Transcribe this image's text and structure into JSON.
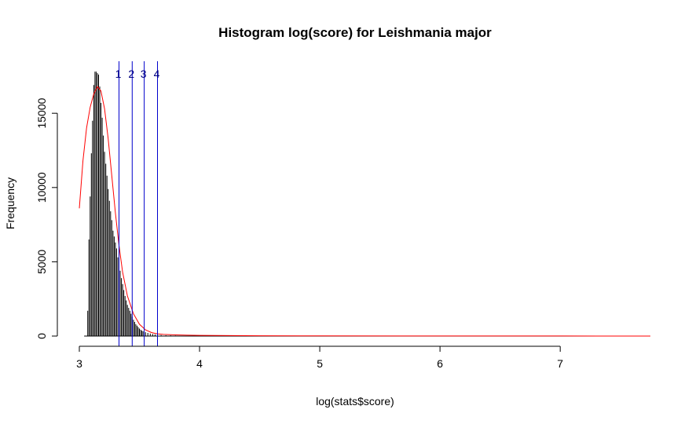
{
  "chart_data": {
    "type": "bar",
    "title": "Histogram log(score) for Leishmania major",
    "xlabel": "log(stats$score)",
    "ylabel": "Frequency",
    "xlim": [
      3.0,
      7.75
    ],
    "ylim": [
      0,
      18500
    ],
    "x_ticks": [
      "3",
      "4",
      "5",
      "6",
      "7"
    ],
    "y_ticks": [
      "0",
      "5000",
      "10000",
      "15000"
    ],
    "bars": {
      "x": [
        3.07,
        3.08,
        3.09,
        3.1,
        3.11,
        3.12,
        3.13,
        3.14,
        3.15,
        3.16,
        3.17,
        3.18,
        3.19,
        3.2,
        3.21,
        3.22,
        3.23,
        3.24,
        3.25,
        3.26,
        3.27,
        3.28,
        3.29,
        3.3,
        3.31,
        3.32,
        3.33,
        3.34,
        3.35,
        3.36,
        3.37,
        3.38,
        3.39,
        3.4,
        3.41,
        3.42,
        3.43,
        3.44,
        3.45,
        3.46,
        3.47,
        3.48,
        3.49,
        3.5,
        3.51,
        3.52,
        3.53,
        3.55,
        3.57,
        3.59,
        3.61,
        3.63,
        3.65,
        3.68,
        3.72,
        3.76,
        3.8,
        3.85,
        3.9,
        3.95,
        4.0,
        4.08,
        4.15,
        4.25,
        4.4,
        4.65,
        4.9,
        5.1,
        5.2,
        6.65
      ],
      "values": [
        1700,
        6500,
        9400,
        12300,
        14500,
        16900,
        17800,
        17800,
        17700,
        17600,
        16800,
        15700,
        14700,
        13500,
        12400,
        11600,
        10800,
        9900,
        9100,
        8400,
        7800,
        7100,
        6700,
        6300,
        5900,
        5300,
        4800,
        4400,
        3900,
        3500,
        3100,
        2700,
        2400,
        2100,
        1900,
        1700,
        1500,
        1300,
        1100,
        950,
        800,
        700,
        600,
        500,
        430,
        370,
        320,
        260,
        210,
        170,
        140,
        110,
        90,
        70,
        55,
        45,
        35,
        28,
        22,
        18,
        14,
        10,
        8,
        6,
        5,
        4,
        4,
        3,
        3,
        2
      ]
    },
    "density_curve": {
      "color": "#ff0000",
      "x": [
        3.0,
        3.03,
        3.06,
        3.09,
        3.12,
        3.15,
        3.18,
        3.21,
        3.24,
        3.27,
        3.3,
        3.33,
        3.36,
        3.4,
        3.45,
        3.5,
        3.55,
        3.6,
        3.65,
        3.7,
        3.8,
        3.9,
        4.0,
        4.5,
        5.0,
        6.0,
        7.0,
        7.75
      ],
      "y": [
        8600,
        11800,
        14000,
        15400,
        16300,
        16800,
        16500,
        15300,
        13300,
        10800,
        8300,
        6100,
        4300,
        2700,
        1500,
        800,
        420,
        240,
        150,
        110,
        80,
        60,
        45,
        20,
        10,
        5,
        3,
        2
      ]
    },
    "cutoffs": {
      "color": "#0000cc",
      "labels": [
        "1",
        "2",
        "3",
        "4"
      ],
      "x": [
        3.33,
        3.44,
        3.54,
        3.65
      ]
    },
    "grid": false,
    "legend": "none"
  }
}
